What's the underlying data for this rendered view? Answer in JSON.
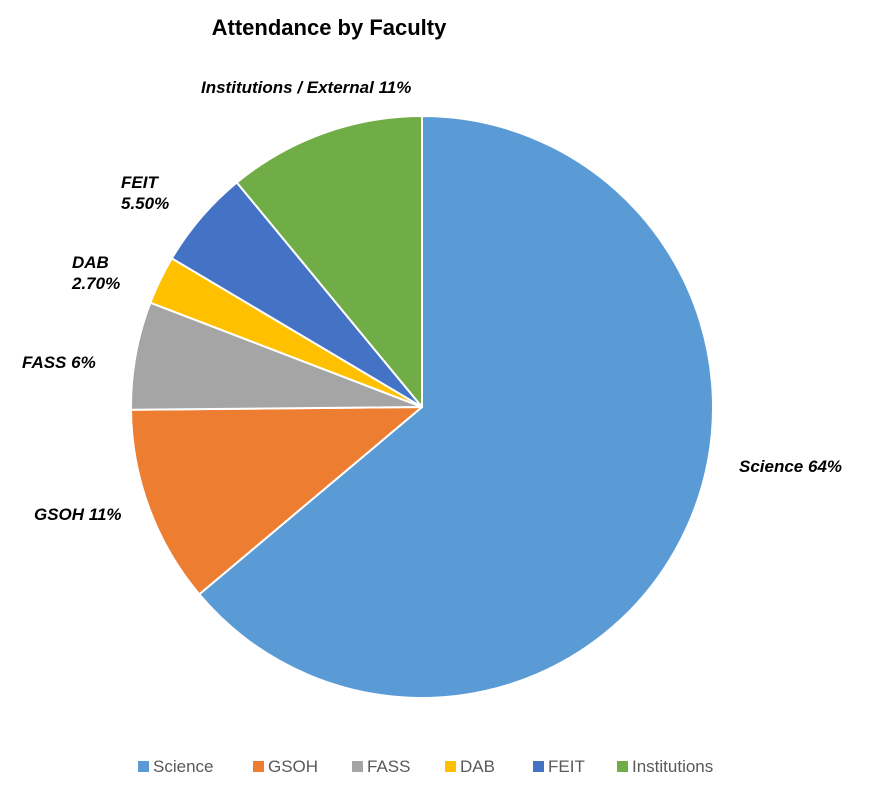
{
  "chart_data": {
    "type": "pie",
    "title": "Attendance by Faculty",
    "legend_position": "bottom",
    "start_angle_deg": 0,
    "direction": "clockwise",
    "slices": [
      {
        "name": "Science",
        "value": 64,
        "color": "#5B9BD5",
        "label": [
          "Science 64%"
        ]
      },
      {
        "name": "GSOH",
        "value": 11,
        "color": "#ED7D31",
        "label": [
          "GSOH 11%"
        ]
      },
      {
        "name": "FASS",
        "value": 6,
        "color": "#A5A5A5",
        "label": [
          "FASS 6%"
        ]
      },
      {
        "name": "DAB",
        "value": 2.7,
        "color": "#FFC000",
        "label": [
          "DAB",
          "2.70%"
        ]
      },
      {
        "name": "FEIT",
        "value": 5.5,
        "color": "#4472C4",
        "label": [
          "FEIT",
          "5.50%"
        ]
      },
      {
        "name": "Institutions",
        "value": 11,
        "color": "#70AD47",
        "label": [
          "Institutions / External 11%"
        ]
      }
    ]
  }
}
